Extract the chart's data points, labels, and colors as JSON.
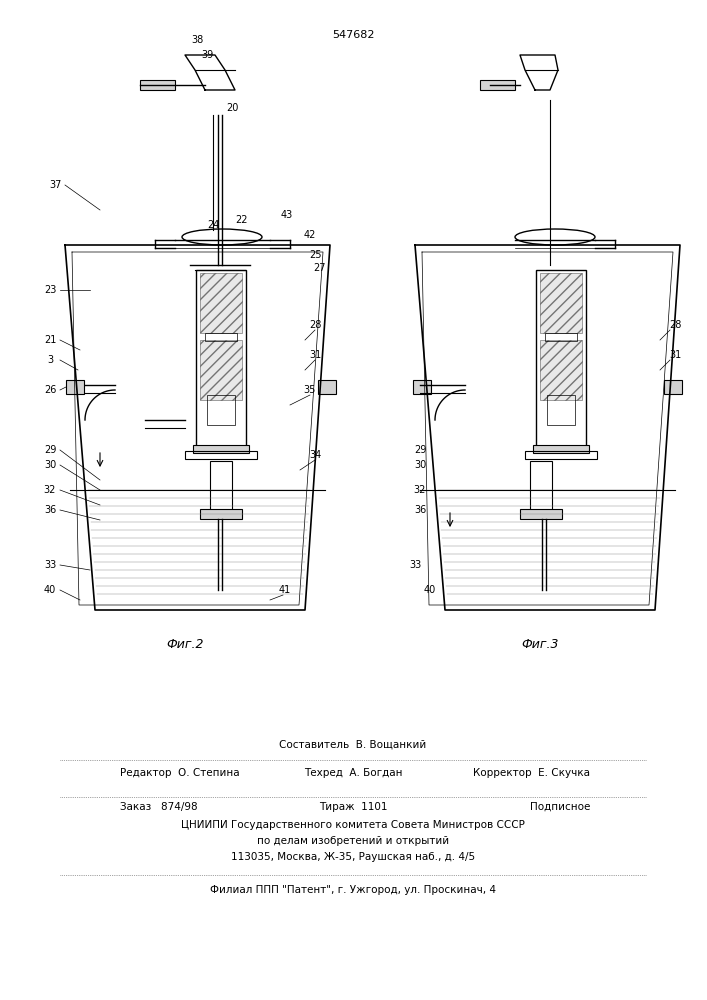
{
  "patent_number": "547682",
  "fig2_label": "Фиг.2",
  "fig3_label": "Фиг.3",
  "footer_line1": "Составитель  В. Вощанкий",
  "footer_line2_left": "Редактор  О. Степина",
  "footer_line2_mid": "Техред  А. Богдан",
  "footer_line2_right": "Корректор  Е. Скучка",
  "footer_line3_left": "Заказ   874/98",
  "footer_line3_mid": "Тираж  1101",
  "footer_line3_right": "Подписное",
  "footer_line4": "ЦНИИПИ Государственного комитета Совета Министров СССР",
  "footer_line5": "по делам изобретений и открытий",
  "footer_line6": "113035, Москва, Ж-35, Раушская наб., д. 4/5",
  "footer_line7": "Филиал ППП \"Патент\", г. Ужгород, ул. Проскинач, 4",
  "bg_color": "#ffffff",
  "line_color": "#000000",
  "fig_width": 7.07,
  "fig_height": 10.0,
  "dpi": 100
}
